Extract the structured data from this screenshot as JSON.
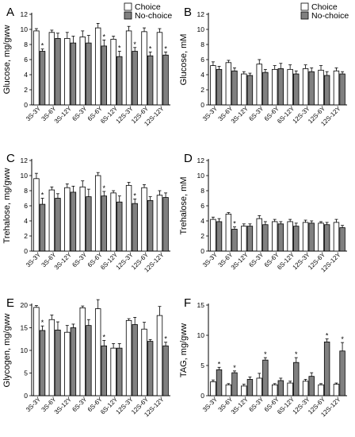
{
  "figure": {
    "categories": [
      "3S-3Y",
      "3S-6Y",
      "3S-12Y",
      "6S-3Y",
      "6S-6Y",
      "6S-12Y",
      "12S-3Y",
      "12S-6Y",
      "12S-12Y"
    ],
    "legend": {
      "choice": "Choice",
      "nochoice": "No-choice"
    },
    "colors": {
      "choice_fill": "#ffffff",
      "nochoice_fill": "#808080",
      "stroke": "#000000"
    }
  },
  "chart_data": [
    {
      "panel": "A",
      "type": "bar",
      "ylabel": "Glucose, mg/gww",
      "ylim": [
        0,
        12
      ],
      "yticks": [
        0,
        2,
        4,
        6,
        8,
        10,
        12
      ],
      "legend": "top-right",
      "categories": [
        "3S-3Y",
        "3S-6Y",
        "3S-12Y",
        "6S-3Y",
        "6S-6Y",
        "6S-12Y",
        "12S-3Y",
        "12S-6Y",
        "12S-12Y"
      ],
      "series": [
        {
          "name": "Choice",
          "values": [
            9.8,
            9.6,
            8.8,
            9.0,
            10.2,
            8.7,
            9.8,
            9.7,
            9.6
          ],
          "errors": [
            0.3,
            0.3,
            0.8,
            0.8,
            0.6,
            0.4,
            0.6,
            0.5,
            0.5
          ]
        },
        {
          "name": "No-choice",
          "values": [
            7.1,
            8.8,
            8.2,
            8.2,
            7.8,
            6.4,
            7.1,
            6.5,
            6.6
          ],
          "errors": [
            0.3,
            0.7,
            0.9,
            1.0,
            0.8,
            0.7,
            0.5,
            0.5,
            0.4
          ]
        }
      ],
      "significant": [
        true,
        false,
        false,
        false,
        true,
        true,
        true,
        true,
        true
      ]
    },
    {
      "panel": "B",
      "type": "bar",
      "ylabel": "Glucose, mM",
      "ylim": [
        0,
        12
      ],
      "yticks": [
        0,
        2,
        4,
        6,
        8,
        10,
        12
      ],
      "legend": "top-right",
      "categories": [
        "3S-3Y",
        "3S-6Y",
        "3S-12Y",
        "6S-3Y",
        "6S-6Y",
        "6S-12Y",
        "12S-3Y",
        "12S-6Y",
        "12S-12Y"
      ],
      "series": [
        {
          "name": "Choice",
          "values": [
            5.2,
            5.6,
            4.1,
            5.4,
            4.7,
            4.7,
            4.8,
            4.6,
            4.5
          ],
          "errors": [
            0.5,
            0.3,
            0.3,
            0.6,
            0.5,
            0.6,
            0.5,
            0.6,
            0.4
          ]
        },
        {
          "name": "No-choice",
          "values": [
            4.7,
            4.5,
            3.9,
            4.3,
            4.8,
            4.1,
            4.4,
            3.9,
            4.1
          ],
          "errors": [
            0.4,
            0.4,
            0.3,
            0.4,
            0.7,
            0.4,
            0.5,
            0.5,
            0.3
          ]
        }
      ],
      "significant": [
        false,
        false,
        false,
        false,
        false,
        false,
        false,
        false,
        false
      ]
    },
    {
      "panel": "C",
      "type": "bar",
      "ylabel": "Trehalose, mg/gww",
      "ylim": [
        0,
        12
      ],
      "yticks": [
        0,
        2,
        4,
        6,
        8,
        10,
        12
      ],
      "categories": [
        "3S-3Y",
        "3S-6Y",
        "3S-12Y",
        "6S-3Y",
        "6S-6Y",
        "6S-12Y",
        "12S-3Y",
        "12S-6Y",
        "12S-12Y"
      ],
      "series": [
        {
          "name": "Choice",
          "values": [
            9.6,
            8.1,
            8.4,
            8.5,
            10.0,
            7.7,
            8.7,
            8.4,
            7.4
          ],
          "errors": [
            0.7,
            0.4,
            0.5,
            0.8,
            0.4,
            0.3,
            0.4,
            0.4,
            0.6
          ]
        },
        {
          "name": "No-choice",
          "values": [
            6.2,
            7.0,
            7.8,
            7.2,
            7.3,
            6.5,
            6.3,
            6.7,
            7.1
          ],
          "errors": [
            0.8,
            0.6,
            0.8,
            1.0,
            0.6,
            0.8,
            0.6,
            0.5,
            0.6
          ]
        }
      ],
      "significant": [
        true,
        false,
        false,
        false,
        true,
        false,
        true,
        false,
        false
      ]
    },
    {
      "panel": "D",
      "type": "bar",
      "ylabel": "Trehalose, mM",
      "ylim": [
        0,
        12
      ],
      "yticks": [
        0,
        2,
        4,
        6,
        8,
        10,
        12
      ],
      "categories": [
        "3S-3Y",
        "3S-6Y",
        "3S-12Y",
        "6S-3Y",
        "6S-6Y",
        "6S-12Y",
        "12S-3Y",
        "12S-6Y",
        "12S-12Y"
      ],
      "series": [
        {
          "name": "Choice",
          "values": [
            4.2,
            4.9,
            3.3,
            4.3,
            3.9,
            3.9,
            3.8,
            3.7,
            3.8
          ],
          "errors": [
            0.3,
            0.2,
            0.3,
            0.4,
            0.3,
            0.3,
            0.3,
            0.2,
            0.4
          ]
        },
        {
          "name": "No-choice",
          "values": [
            3.9,
            2.9,
            3.3,
            3.5,
            3.6,
            3.3,
            3.7,
            3.5,
            3.1
          ],
          "errors": [
            0.4,
            0.3,
            0.3,
            0.4,
            0.3,
            0.4,
            0.3,
            0.3,
            0.3
          ]
        }
      ],
      "significant": [
        false,
        true,
        false,
        false,
        false,
        false,
        false,
        false,
        false
      ]
    },
    {
      "panel": "E",
      "type": "bar",
      "ylabel": "Glycogen, mg/gww",
      "ylim": [
        0,
        20
      ],
      "yticks": [
        0,
        5,
        10,
        15,
        20
      ],
      "categories": [
        "3S-3Y",
        "3S-6Y",
        "3S-12Y",
        "6S-3Y",
        "6S-6Y",
        "6S-12Y",
        "12S-3Y",
        "12S-6Y",
        "12S-12Y"
      ],
      "series": [
        {
          "name": "Choice",
          "values": [
            19.5,
            16.8,
            14.0,
            19.4,
            19.2,
            10.5,
            16.6,
            14.7,
            17.7
          ],
          "errors": [
            0.4,
            1.0,
            1.5,
            0.4,
            2.0,
            1.0,
            0.4,
            1.5,
            2.0
          ]
        },
        {
          "name": "No-choice",
          "values": [
            14.4,
            14.5,
            15.0,
            15.5,
            11.0,
            10.5,
            15.7,
            12.0,
            11.0
          ],
          "errors": [
            1.0,
            1.8,
            0.8,
            1.3,
            1.2,
            1.0,
            1.6,
            0.4,
            0.8
          ]
        }
      ],
      "significant": [
        true,
        false,
        false,
        false,
        true,
        false,
        false,
        false,
        true
      ]
    },
    {
      "panel": "F",
      "type": "bar",
      "ylabel": "TAG, mg/gww",
      "ylim": [
        0,
        15
      ],
      "yticks": [
        0,
        5,
        10,
        15
      ],
      "categories": [
        "3S-3Y",
        "3S-6Y",
        "3S-12Y",
        "6S-3Y",
        "6S-6Y",
        "6S-12Y",
        "12S-3Y",
        "12S-6Y",
        "12S-12Y"
      ],
      "series": [
        {
          "name": "Choice",
          "values": [
            2.3,
            1.8,
            1.6,
            2.9,
            1.8,
            2.1,
            2.4,
            1.8,
            1.9
          ],
          "errors": [
            0.3,
            0.2,
            0.3,
            0.8,
            0.2,
            0.3,
            0.3,
            0.2,
            0.2
          ]
        },
        {
          "name": "No-choice",
          "values": [
            4.3,
            3.8,
            2.7,
            5.9,
            2.5,
            5.5,
            3.2,
            8.9,
            7.4
          ],
          "errors": [
            0.4,
            0.3,
            0.4,
            0.4,
            0.4,
            0.8,
            0.6,
            0.5,
            1.4
          ]
        }
      ],
      "significant": [
        true,
        true,
        false,
        true,
        false,
        true,
        false,
        true,
        true
      ]
    }
  ]
}
